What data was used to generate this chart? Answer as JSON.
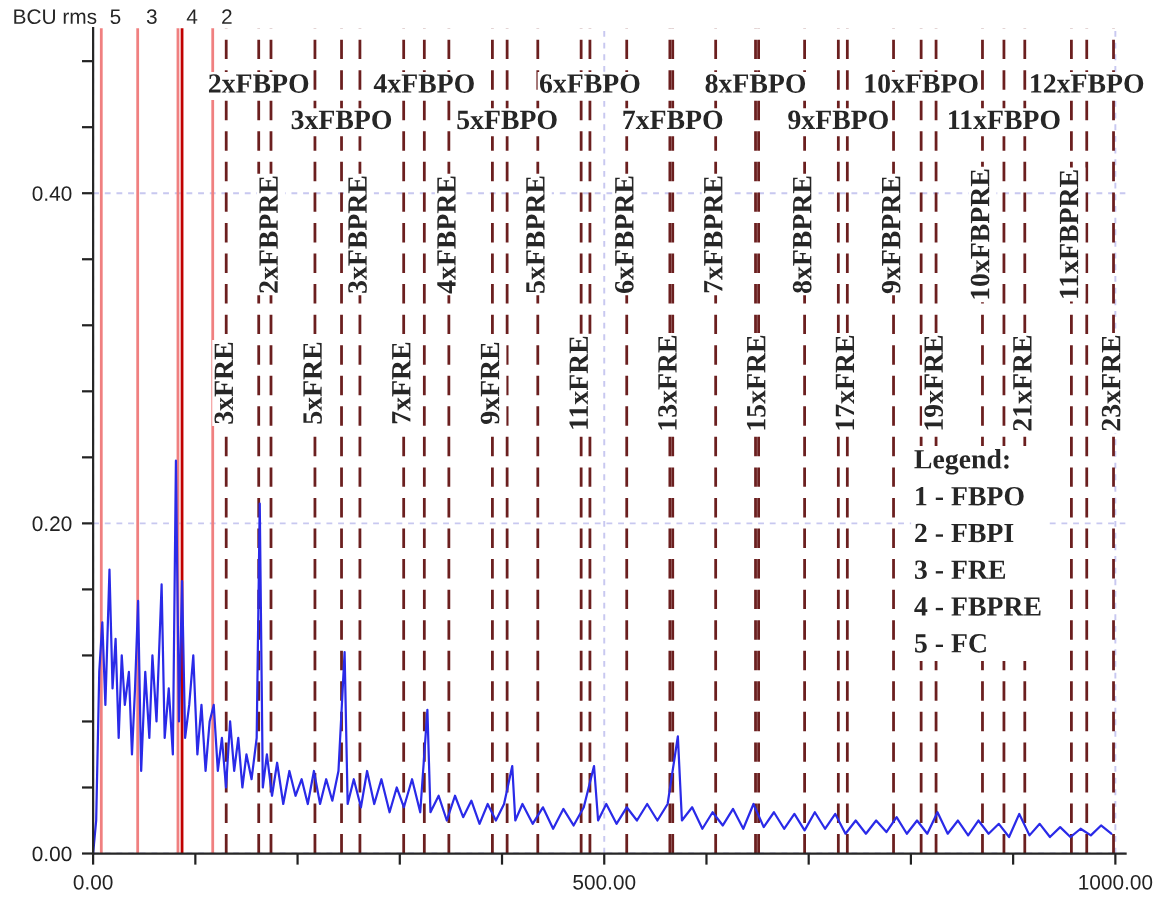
{
  "chart_data": {
    "type": "line",
    "ylabel": "BCU rms",
    "x": [
      0,
      3,
      6,
      9,
      12,
      16,
      19,
      22,
      25,
      28,
      31,
      35,
      38,
      41,
      44,
      47,
      51,
      55,
      58,
      62,
      67,
      70,
      74,
      78,
      81,
      84,
      87,
      90,
      94,
      98,
      102,
      106,
      110,
      114,
      118,
      122,
      126,
      130,
      134,
      138,
      142,
      146,
      150,
      155,
      160,
      163,
      166,
      170,
      175,
      180,
      186,
      192,
      198,
      204,
      210,
      216,
      222,
      228,
      234,
      240,
      246,
      249,
      255,
      262,
      268,
      275,
      282,
      290,
      297,
      304,
      312,
      320,
      327,
      330,
      338,
      346,
      354,
      362,
      370,
      378,
      386,
      394,
      402,
      410,
      413,
      420,
      430,
      440,
      450,
      460,
      470,
      480,
      490,
      494,
      502,
      512,
      522,
      532,
      542,
      552,
      562,
      572,
      576,
      586,
      596,
      606,
      616,
      626,
      636,
      646,
      656,
      666,
      676,
      686,
      696,
      706,
      716,
      726,
      736,
      746,
      756,
      766,
      776,
      786,
      796,
      806,
      816,
      826,
      836,
      846,
      856,
      866,
      876,
      886,
      896,
      906,
      916,
      926,
      936,
      946,
      956,
      966,
      976,
      986,
      996
    ],
    "series": [
      {
        "color": "#2a2ae8",
        "values": [
          0,
          0.02,
          0.11,
          0.14,
          0.09,
          0.172,
          0.1,
          0.13,
          0.07,
          0.12,
          0.09,
          0.11,
          0.06,
          0.1,
          0.153,
          0.05,
          0.11,
          0.07,
          0.12,
          0.08,
          0.163,
          0.07,
          0.1,
          0.06,
          0.238,
          0.08,
          0.165,
          0.07,
          0.09,
          0.12,
          0.06,
          0.09,
          0.05,
          0.08,
          0.09,
          0.05,
          0.07,
          0.04,
          0.08,
          0.05,
          0.07,
          0.04,
          0.06,
          0.045,
          0.07,
          0.212,
          0.04,
          0.06,
          0.035,
          0.055,
          0.03,
          0.05,
          0.035,
          0.045,
          0.03,
          0.05,
          0.03,
          0.045,
          0.032,
          0.05,
          0.122,
          0.03,
          0.045,
          0.028,
          0.05,
          0.03,
          0.045,
          0.025,
          0.04,
          0.028,
          0.045,
          0.025,
          0.087,
          0.025,
          0.035,
          0.02,
          0.035,
          0.022,
          0.032,
          0.018,
          0.03,
          0.02,
          0.03,
          0.053,
          0.02,
          0.03,
          0.018,
          0.028,
          0.015,
          0.027,
          0.017,
          0.028,
          0.053,
          0.02,
          0.03,
          0.018,
          0.028,
          0.02,
          0.03,
          0.02,
          0.03,
          0.071,
          0.02,
          0.028,
          0.015,
          0.025,
          0.017,
          0.027,
          0.015,
          0.03,
          0.016,
          0.025,
          0.015,
          0.024,
          0.014,
          0.025,
          0.015,
          0.024,
          0.012,
          0.02,
          0.012,
          0.02,
          0.013,
          0.022,
          0.012,
          0.02,
          0.012,
          0.025,
          0.012,
          0.02,
          0.011,
          0.02,
          0.012,
          0.018,
          0.01,
          0.024,
          0.011,
          0.018,
          0.01,
          0.016,
          0.01,
          0.015,
          0.011,
          0.017,
          0.012
        ]
      }
    ],
    "xlim": [
      0,
      1010
    ],
    "ylim": [
      0,
      0.5
    ],
    "xticks": [
      {
        "value": 0,
        "label": "0.00"
      },
      {
        "value": 100,
        "label": null
      },
      {
        "value": 200,
        "label": null
      },
      {
        "value": 300,
        "label": null
      },
      {
        "value": 400,
        "label": null
      },
      {
        "value": 500,
        "label": "500.00"
      },
      {
        "value": 600,
        "label": null
      },
      {
        "value": 700,
        "label": null
      },
      {
        "value": 800,
        "label": null
      },
      {
        "value": 900,
        "label": null
      },
      {
        "value": 1000,
        "label": "1000.00"
      }
    ],
    "yticks": [
      {
        "value": 0,
        "label": "0.00"
      },
      {
        "value": 0.04,
        "label": null
      },
      {
        "value": 0.08,
        "label": null
      },
      {
        "value": 0.12,
        "label": null
      },
      {
        "value": 0.16,
        "label": null
      },
      {
        "value": 0.2,
        "label": "0.20"
      },
      {
        "value": 0.24,
        "label": null
      },
      {
        "value": 0.28,
        "label": null
      },
      {
        "value": 0.32,
        "label": null
      },
      {
        "value": 0.36,
        "label": null
      },
      {
        "value": 0.4,
        "label": "0.40"
      },
      {
        "value": 0.44,
        "label": null
      },
      {
        "value": 0.48,
        "label": null
      }
    ],
    "grid": true,
    "legend": false,
    "ref_lines": [
      {
        "axis": "x",
        "value": 8,
        "color": "#f08080",
        "line_style": "solid"
      },
      {
        "axis": "x",
        "value": 43.6,
        "color": "#f08080",
        "line_style": "solid"
      },
      {
        "axis": "x",
        "value": 83,
        "color": "#f08080",
        "line_style": "solid"
      },
      {
        "axis": "x",
        "value": 87,
        "color": "#c00000",
        "line_style": "solid"
      },
      {
        "axis": "x",
        "value": 117,
        "color": "#f08080",
        "line_style": "solid"
      },
      {
        "axis": "x",
        "value": 162,
        "color": "#6b1f1f",
        "line_style": "dashed"
      },
      {
        "axis": "x",
        "value": 243,
        "color": "#6b1f1f",
        "line_style": "dashed"
      },
      {
        "axis": "x",
        "value": 324,
        "color": "#6b1f1f",
        "line_style": "dashed"
      },
      {
        "axis": "x",
        "value": 405,
        "color": "#6b1f1f",
        "line_style": "dashed"
      },
      {
        "axis": "x",
        "value": 486,
        "color": "#6b1f1f",
        "line_style": "dashed"
      },
      {
        "axis": "x",
        "value": 567,
        "color": "#6b1f1f",
        "line_style": "dashed"
      },
      {
        "axis": "x",
        "value": 648,
        "color": "#6b1f1f",
        "line_style": "dashed"
      },
      {
        "axis": "x",
        "value": 729,
        "color": "#6b1f1f",
        "line_style": "dashed"
      },
      {
        "axis": "x",
        "value": 810,
        "color": "#6b1f1f",
        "line_style": "dashed"
      },
      {
        "axis": "x",
        "value": 891,
        "color": "#6b1f1f",
        "line_style": "dashed"
      },
      {
        "axis": "x",
        "value": 972,
        "color": "#6b1f1f",
        "line_style": "dashed"
      },
      {
        "axis": "x",
        "value": 174,
        "color": "#6b1f1f",
        "line_style": "dashed"
      },
      {
        "axis": "x",
        "value": 261,
        "color": "#6b1f1f",
        "line_style": "dashed"
      },
      {
        "axis": "x",
        "value": 348,
        "color": "#6b1f1f",
        "line_style": "dashed"
      },
      {
        "axis": "x",
        "value": 435,
        "color": "#6b1f1f",
        "line_style": "dashed"
      },
      {
        "axis": "x",
        "value": 522,
        "color": "#6b1f1f",
        "line_style": "dashed"
      },
      {
        "axis": "x",
        "value": 609,
        "color": "#6b1f1f",
        "line_style": "dashed"
      },
      {
        "axis": "x",
        "value": 696,
        "color": "#6b1f1f",
        "line_style": "dashed"
      },
      {
        "axis": "x",
        "value": 783,
        "color": "#6b1f1f",
        "line_style": "dashed"
      },
      {
        "axis": "x",
        "value": 870,
        "color": "#6b1f1f",
        "line_style": "dashed"
      },
      {
        "axis": "x",
        "value": 957,
        "color": "#6b1f1f",
        "line_style": "dashed"
      },
      {
        "axis": "x",
        "value": 130.2,
        "color": "#6b1f1f",
        "line_style": "dashed"
      },
      {
        "axis": "x",
        "value": 217,
        "color": "#6b1f1f",
        "line_style": "dashed"
      },
      {
        "axis": "x",
        "value": 303.8,
        "color": "#6b1f1f",
        "line_style": "dashed"
      },
      {
        "axis": "x",
        "value": 390.6,
        "color": "#6b1f1f",
        "line_style": "dashed"
      },
      {
        "axis": "x",
        "value": 477.4,
        "color": "#6b1f1f",
        "line_style": "dashed"
      },
      {
        "axis": "x",
        "value": 564.2,
        "color": "#6b1f1f",
        "line_style": "dashed"
      },
      {
        "axis": "x",
        "value": 651,
        "color": "#6b1f1f",
        "line_style": "dashed"
      },
      {
        "axis": "x",
        "value": 737.8,
        "color": "#6b1f1f",
        "line_style": "dashed"
      },
      {
        "axis": "x",
        "value": 824.6,
        "color": "#6b1f1f",
        "line_style": "dashed"
      },
      {
        "axis": "x",
        "value": 911.4,
        "color": "#6b1f1f",
        "line_style": "dashed"
      },
      {
        "axis": "x",
        "value": 998.2,
        "color": "#6b1f1f",
        "line_style": "dashed"
      }
    ],
    "annotations": [
      {
        "text": "5",
        "x": 8,
        "y": 0.5
      },
      {
        "text": "3",
        "x": 43.6,
        "y": 0.5
      },
      {
        "text": "4",
        "x": 83,
        "y": 0.5
      },
      {
        "text": "2",
        "x": 117,
        "y": 0.5
      },
      {
        "text": "2xFBPO",
        "x": 162,
        "y": 0.465
      },
      {
        "text": "3xFBPO",
        "x": 243,
        "y": 0.443
      },
      {
        "text": "4xFBPO",
        "x": 324,
        "y": 0.465
      },
      {
        "text": "5xFBPO",
        "x": 405,
        "y": 0.443
      },
      {
        "text": "6xFBPO",
        "x": 486,
        "y": 0.465
      },
      {
        "text": "7xFBPO",
        "x": 567,
        "y": 0.443
      },
      {
        "text": "8xFBPO",
        "x": 648,
        "y": 0.465
      },
      {
        "text": "9xFBPO",
        "x": 729,
        "y": 0.443
      },
      {
        "text": "10xFBPO",
        "x": 810,
        "y": 0.465
      },
      {
        "text": "11xFBPO",
        "x": 891,
        "y": 0.443
      },
      {
        "text": "12xFBPO",
        "x": 972,
        "y": 0.465
      },
      {
        "text": "2xFBPRE",
        "x": 174,
        "y": 0.375
      },
      {
        "text": "3xFBPRE",
        "x": 261,
        "y": 0.375
      },
      {
        "text": "4xFBPRE",
        "x": 348,
        "y": 0.375
      },
      {
        "text": "5xFBPRE",
        "x": 435,
        "y": 0.375
      },
      {
        "text": "6xFBPRE",
        "x": 522,
        "y": 0.375
      },
      {
        "text": "7xFBPRE",
        "x": 609,
        "y": 0.375
      },
      {
        "text": "8xFBPRE",
        "x": 696,
        "y": 0.375
      },
      {
        "text": "9xFBPRE",
        "x": 783,
        "y": 0.375
      },
      {
        "text": "10xFBPRE",
        "x": 870,
        "y": 0.375
      },
      {
        "text": "11xFBPRE",
        "x": 957,
        "y": 0.375
      },
      {
        "text": "3xFRE",
        "x": 130.2,
        "y": 0.285
      },
      {
        "text": "5xFRE",
        "x": 217,
        "y": 0.285
      },
      {
        "text": "7xFRE",
        "x": 303.8,
        "y": 0.285
      },
      {
        "text": "9xFRE",
        "x": 390.6,
        "y": 0.285
      },
      {
        "text": "11xFRE",
        "x": 477.4,
        "y": 0.285
      },
      {
        "text": "13xFRE",
        "x": 564.2,
        "y": 0.285
      },
      {
        "text": "15xFRE",
        "x": 651,
        "y": 0.285
      },
      {
        "text": "17xFRE",
        "x": 737.8,
        "y": 0.285
      },
      {
        "text": "19xFRE",
        "x": 824.6,
        "y": 0.285
      },
      {
        "text": "21xFRE",
        "x": 911.4,
        "y": 0.285
      },
      {
        "text": "23xFRE",
        "x": 998.2,
        "y": 0.285
      },
      "Legend:",
      "1 - FBPO",
      "2 - FBPI",
      "3 - FRE",
      "4 - FBPRE",
      "5 - FC"
    ]
  }
}
